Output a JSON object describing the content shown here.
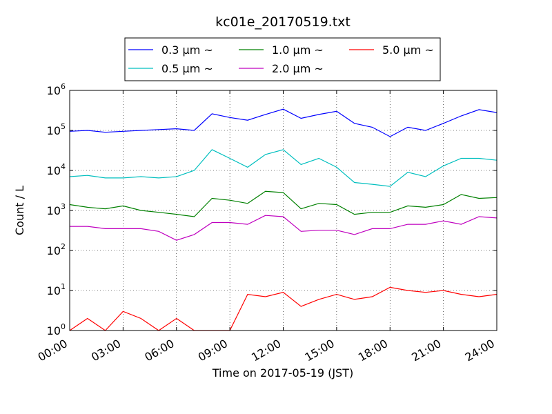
{
  "chart_data": {
    "type": "line",
    "title": "kc01e_20170519.txt",
    "xlabel": "Time on 2017-05-19 (JST)",
    "ylabel": "Count / L",
    "yscale": "log",
    "ylim": [
      1,
      1000000
    ],
    "xlim": [
      "00:00",
      "24:00"
    ],
    "grid": true,
    "legend_location": "top-center, outside plot, 3 columns",
    "x_ticks": [
      "00:00",
      "03:00",
      "06:00",
      "09:00",
      "12:00",
      "15:00",
      "18:00",
      "21:00",
      "24:00"
    ],
    "y_ticks": [
      {
        "base": "10",
        "exp": "0"
      },
      {
        "base": "10",
        "exp": "1"
      },
      {
        "base": "10",
        "exp": "2"
      },
      {
        "base": "10",
        "exp": "3"
      },
      {
        "base": "10",
        "exp": "4"
      },
      {
        "base": "10",
        "exp": "5"
      },
      {
        "base": "10",
        "exp": "6"
      }
    ],
    "x": [
      "00:00",
      "01:00",
      "02:00",
      "03:00",
      "04:00",
      "05:00",
      "06:00",
      "07:00",
      "08:00",
      "09:00",
      "10:00",
      "11:00",
      "12:00",
      "13:00",
      "14:00",
      "15:00",
      "16:00",
      "17:00",
      "18:00",
      "19:00",
      "20:00",
      "21:00",
      "22:00",
      "23:00",
      "24:00"
    ],
    "series": [
      {
        "name": "0.3 μm ~",
        "color": "#0000ff",
        "values": [
          95000,
          100000,
          90000,
          95000,
          100000,
          105000,
          110000,
          100000,
          260000,
          210000,
          180000,
          250000,
          340000,
          200000,
          250000,
          300000,
          150000,
          120000,
          70000,
          120000,
          100000,
          150000,
          230000,
          330000,
          280000
        ]
      },
      {
        "name": "0.5 μm ~",
        "color": "#00bfbf",
        "values": [
          7000,
          7500,
          6500,
          6500,
          7000,
          6500,
          7000,
          10000,
          33000,
          20000,
          12000,
          25000,
          33000,
          14000,
          20000,
          12000,
          5000,
          4500,
          4000,
          9000,
          7000,
          13000,
          20000,
          20000,
          18000
        ]
      },
      {
        "name": "1.0 μm ~",
        "color": "#008000",
        "values": [
          1400,
          1200,
          1100,
          1300,
          1000,
          900,
          800,
          700,
          2000,
          1800,
          1500,
          3000,
          2800,
          1100,
          1500,
          1400,
          800,
          900,
          900,
          1300,
          1200,
          1400,
          2500,
          2000,
          2100
        ]
      },
      {
        "name": "2.0 μm ~",
        "color": "#bf00bf",
        "values": [
          400,
          400,
          350,
          350,
          350,
          300,
          180,
          250,
          500,
          500,
          450,
          750,
          700,
          300,
          320,
          320,
          250,
          350,
          350,
          450,
          450,
          550,
          450,
          700,
          650
        ]
      },
      {
        "name": "5.0 μm ~",
        "color": "#ff0000",
        "values": [
          1,
          2,
          1,
          3,
          2,
          1,
          2,
          1,
          1,
          1,
          8,
          7,
          9,
          4,
          6,
          8,
          6,
          7,
          12,
          10,
          9,
          10,
          8,
          7,
          8
        ]
      }
    ]
  }
}
